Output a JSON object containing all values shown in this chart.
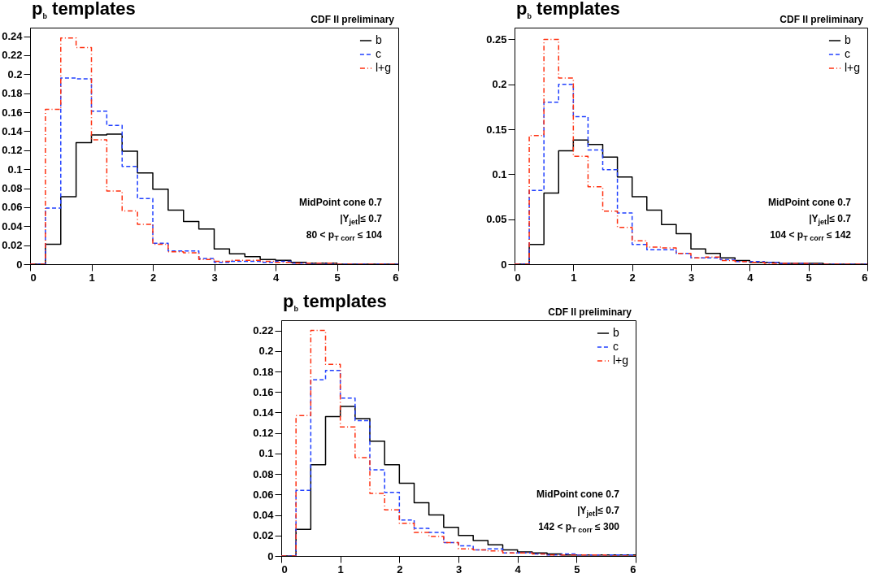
{
  "chart_data": [
    {
      "type": "histogram",
      "title": "p$_{b}$ templates",
      "subtitle": "CDF II preliminary",
      "annotations": [
        "MidPoint cone 0.7",
        "|Y$_{jet}$|≤ 0.7",
        "80 < p$_{T corr}$ ≤ 104"
      ],
      "bins": [
        0,
        0.25,
        0.5,
        0.75,
        1,
        1.25,
        1.5,
        1.75,
        2,
        2.25,
        2.5,
        2.75,
        3,
        3.25,
        3.5,
        3.75,
        4,
        4.25,
        4.5,
        4.75,
        5,
        5.25,
        5.5,
        5.75,
        6
      ],
      "series": [
        {
          "name": "b",
          "color": "#000000",
          "line_style": "solid",
          "values": [
            0,
            0.021,
            0.071,
            0.128,
            0.136,
            0.137,
            0.119,
            0.096,
            0.079,
            0.057,
            0.045,
            0.037,
            0.016,
            0.011,
            0.008,
            0.005,
            0.004,
            0.002,
            0.001,
            0.001,
            0,
            0,
            0,
            0
          ]
        },
        {
          "name": "c",
          "color": "#2040ff",
          "line_style": "dashed",
          "values": [
            0,
            0.059,
            0.196,
            0.195,
            0.161,
            0.146,
            0.103,
            0.069,
            0.022,
            0.014,
            0.014,
            0.006,
            0.002,
            0.003,
            0.003,
            0.002,
            0.003,
            0.001,
            0,
            0,
            0,
            0,
            0,
            0
          ]
        },
        {
          "name": "l+g",
          "color": "#ff3010",
          "line_style": "dashdot",
          "values": [
            0,
            0.163,
            0.238,
            0.228,
            0.131,
            0.077,
            0.056,
            0.042,
            0.021,
            0.013,
            0.012,
            0.005,
            0.003,
            0.004,
            0.004,
            0.003,
            0.002,
            0.001,
            0.001,
            0.001,
            0,
            0,
            0,
            0
          ]
        }
      ],
      "xlim": [
        0,
        6
      ],
      "xticks": [
        0,
        1,
        2,
        3,
        4,
        5,
        6
      ],
      "ylim": [
        0,
        0.249
      ],
      "yticks": [
        0,
        0.02,
        0.04,
        0.06,
        0.08,
        0.1,
        0.12,
        0.14,
        0.16,
        0.18,
        0.2,
        0.22,
        0.24
      ],
      "legend": "top right",
      "grid": false
    },
    {
      "type": "histogram",
      "title": "p$_{b}$ templates",
      "subtitle": "CDF II preliminary",
      "annotations": [
        "MidPoint cone 0.7",
        "|Y$_{jet}$|≤ 0.7",
        "104 < p$_{T corr}$ ≤ 142"
      ],
      "bins": [
        0,
        0.25,
        0.5,
        0.75,
        1,
        1.25,
        1.5,
        1.75,
        2,
        2.25,
        2.5,
        2.75,
        3,
        3.25,
        3.5,
        3.75,
        4,
        4.25,
        4.5,
        4.75,
        5,
        5.25,
        5.5,
        5.75,
        6
      ],
      "series": [
        {
          "name": "b",
          "color": "#000000",
          "line_style": "solid",
          "values": [
            0,
            0.022,
            0.079,
            0.126,
            0.138,
            0.133,
            0.119,
            0.097,
            0.075,
            0.06,
            0.044,
            0.034,
            0.017,
            0.012,
            0.007,
            0.004,
            0.002,
            0.002,
            0.001,
            0.001,
            0.001,
            0,
            0,
            0
          ]
        },
        {
          "name": "c",
          "color": "#2040ff",
          "line_style": "dashed",
          "values": [
            0,
            0.082,
            0.18,
            0.2,
            0.164,
            0.127,
            0.105,
            0.057,
            0.022,
            0.016,
            0.016,
            0.012,
            0.007,
            0.007,
            0.005,
            0.003,
            0.003,
            0.002,
            0.001,
            0.001,
            0,
            0,
            0,
            0
          ]
        },
        {
          "name": "l+g",
          "color": "#ff3010",
          "line_style": "dashdot",
          "values": [
            0,
            0.143,
            0.25,
            0.207,
            0.12,
            0.086,
            0.059,
            0.041,
            0.026,
            0.019,
            0.018,
            0.012,
            0.007,
            0.008,
            0.004,
            0.003,
            0.002,
            0.001,
            0.001,
            0.001,
            0,
            0,
            0,
            0
          ]
        }
      ],
      "xlim": [
        0,
        6
      ],
      "xticks": [
        0,
        1,
        2,
        3,
        4,
        5,
        6
      ],
      "ylim": [
        0,
        0.263
      ],
      "yticks": [
        0,
        0.05,
        0.1,
        0.15,
        0.2,
        0.25
      ],
      "legend": "top right",
      "grid": false
    },
    {
      "type": "histogram",
      "title": "p$_{b}$ templates",
      "subtitle": "CDF II preliminary",
      "annotations": [
        "MidPoint cone 0.7",
        "|Y$_{jet}$|≤ 0.7",
        "142 < p$_{T corr}$ ≤ 300"
      ],
      "bins": [
        0,
        0.25,
        0.5,
        0.75,
        1,
        1.25,
        1.5,
        1.75,
        2,
        2.25,
        2.5,
        2.75,
        3,
        3.25,
        3.5,
        3.75,
        4,
        4.25,
        4.5,
        4.75,
        5,
        5.25,
        5.5,
        5.75,
        6
      ],
      "series": [
        {
          "name": "b",
          "color": "#000000",
          "line_style": "solid",
          "values": [
            0,
            0.026,
            0.089,
            0.136,
            0.146,
            0.134,
            0.112,
            0.089,
            0.071,
            0.052,
            0.04,
            0.028,
            0.02,
            0.015,
            0.011,
            0.006,
            0.004,
            0.003,
            0.002,
            0.001,
            0.001,
            0.001,
            0.001,
            0.001
          ]
        },
        {
          "name": "c",
          "color": "#2040ff",
          "line_style": "dashed",
          "values": [
            0,
            0.064,
            0.172,
            0.181,
            0.154,
            0.132,
            0.084,
            0.062,
            0.035,
            0.027,
            0.023,
            0.013,
            0.01,
            0.006,
            0.007,
            0.003,
            0.003,
            0.002,
            0.001,
            0.002,
            0.001,
            0.001,
            0.001,
            0.001
          ]
        },
        {
          "name": "l+g",
          "color": "#ff3010",
          "line_style": "dashdot",
          "values": [
            0,
            0.137,
            0.22,
            0.187,
            0.126,
            0.096,
            0.061,
            0.045,
            0.032,
            0.023,
            0.019,
            0.013,
            0.007,
            0.006,
            0.005,
            0.003,
            0.003,
            0.002,
            0.001,
            0.001,
            0.001,
            0.001,
            0,
            0
          ]
        }
      ],
      "xlim": [
        0,
        6
      ],
      "xticks": [
        0,
        1,
        2,
        3,
        4,
        5,
        6
      ],
      "ylim": [
        0,
        0.23
      ],
      "yticks": [
        0,
        0.02,
        0.04,
        0.06,
        0.08,
        0.1,
        0.12,
        0.14,
        0.16,
        0.18,
        0.2,
        0.22
      ],
      "legend": "top right",
      "grid": false
    }
  ]
}
